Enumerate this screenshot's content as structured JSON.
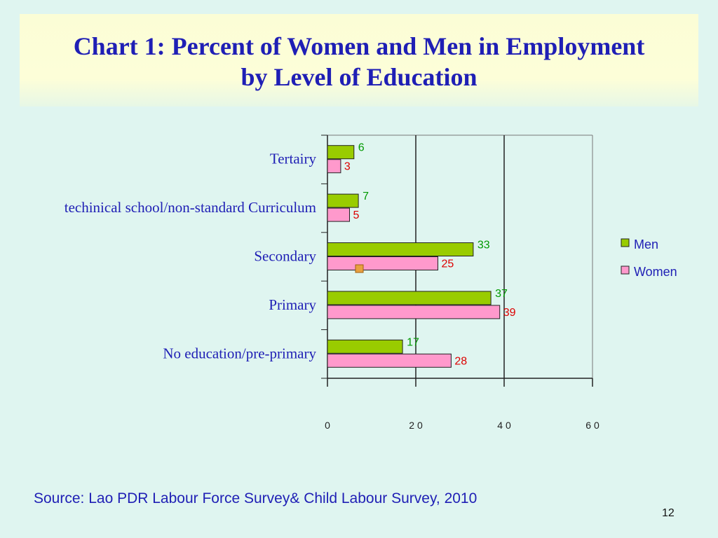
{
  "slide": {
    "title_line1": "Chart 1: Percent of Women and Men in Employment",
    "title_line2": "by Level of Education",
    "source": "Source: Lao PDR Labour Force Survey& Child Labour Survey, 2010",
    "page_number": "12"
  },
  "colors": {
    "background": "#dff5f0",
    "title": "#1f1fb5",
    "men": "#99cc00",
    "women": "#ff99cc",
    "men_label": "#009900",
    "women_label": "#dd0000"
  },
  "chart_data": {
    "type": "bar",
    "orientation": "horizontal",
    "categories": [
      "Tertairy",
      "techinical school/non-standard Curriculum",
      "Secondary",
      "Primary",
      "No education/pre-primary"
    ],
    "series": [
      {
        "name": "Men",
        "values": [
          6,
          7,
          33,
          37,
          17
        ]
      },
      {
        "name": "Women",
        "values": [
          3,
          5,
          25,
          39,
          28
        ]
      }
    ],
    "xlim": [
      0,
      60
    ],
    "x_ticks": [
      0,
      20,
      40,
      60
    ],
    "x_tick_labels": [
      "0",
      "2 0",
      "4 0",
      "6 0"
    ],
    "grid": "vertical",
    "legend": "right"
  }
}
